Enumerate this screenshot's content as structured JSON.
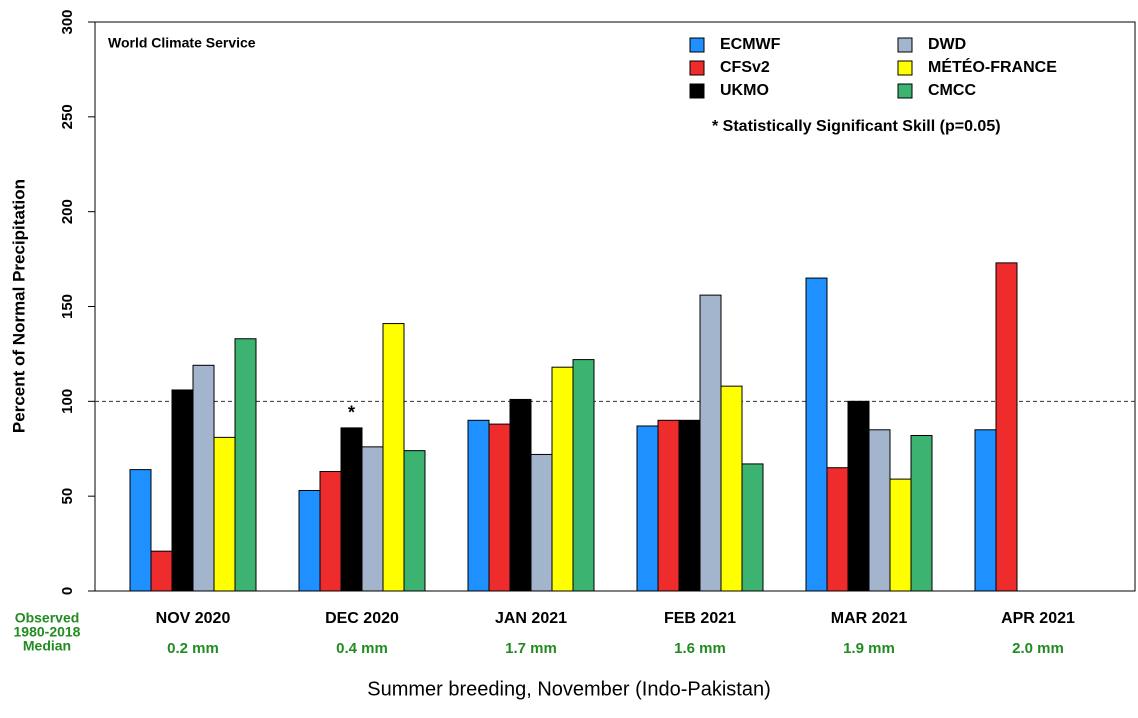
{
  "chart_data": {
    "type": "bar",
    "subtitle": "World Climate Service",
    "ylabel": "Percent of Normal Precipitation",
    "caption": "Summer breeding, November (Indo-Pakistan)",
    "categories": [
      "NOV 2020",
      "DEC 2020",
      "JAN 2021",
      "FEB 2021",
      "MAR 2021",
      "APR 2021"
    ],
    "observed_label": [
      "Observed",
      "1980-2018",
      "Median"
    ],
    "observed_medians": [
      "0.2 mm",
      "0.4 mm",
      "1.7 mm",
      "1.6 mm",
      "1.9 mm",
      "2.0 mm"
    ],
    "series": [
      {
        "name": "ECMWF",
        "color": "#1e90ff",
        "values": [
          64,
          53,
          90,
          87,
          165,
          85
        ]
      },
      {
        "name": "CFSv2",
        "color": "#ee2c2c",
        "values": [
          21,
          63,
          88,
          90,
          65,
          173
        ]
      },
      {
        "name": "UKMO",
        "color": "#000000",
        "values": [
          106,
          86,
          101,
          90,
          100,
          null
        ]
      },
      {
        "name": "DWD",
        "color": "#a2b5cd",
        "values": [
          119,
          76,
          72,
          156,
          85,
          null
        ]
      },
      {
        "name": "MÉTÉO-FRANCE",
        "color": "#ffff00",
        "values": [
          81,
          141,
          118,
          108,
          59,
          null
        ]
      },
      {
        "name": "CMCC",
        "color": "#3cb371",
        "values": [
          133,
          74,
          122,
          67,
          82,
          null
        ]
      }
    ],
    "significance_marker": "*",
    "legend_note": "* Statistically Significant Skill (p=0.05)",
    "reference_line": 100,
    "ylim": [
      0,
      300
    ],
    "yticks": [
      0,
      50,
      100,
      150,
      200,
      250,
      300
    ]
  }
}
